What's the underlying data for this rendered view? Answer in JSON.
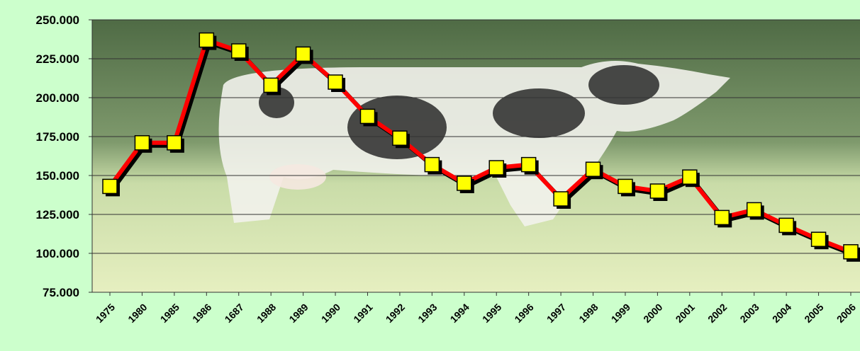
{
  "chart_data": {
    "type": "line",
    "categories": [
      "1975",
      "1980",
      "1985",
      "1986",
      "1687",
      "1988",
      "1989",
      "1990",
      "1991",
      "1992",
      "1993",
      "1994",
      "1995",
      "1996",
      "1997",
      "1998",
      "1999",
      "2000",
      "2001",
      "2002",
      "2003",
      "2004",
      "2005",
      "2006"
    ],
    "series": [
      {
        "color": "#ff0000",
        "marker_color": "#ffff00",
        "values": [
          143000,
          171000,
          171000,
          237000,
          230000,
          208000,
          228000,
          210000,
          188000,
          174000,
          157000,
          145000,
          155000,
          157000,
          135000,
          154000,
          143000,
          140000,
          149000,
          123000,
          128000,
          118000,
          109000,
          101000
        ]
      }
    ],
    "ylim": [
      75000,
      250000
    ],
    "yticks": [
      {
        "value": 75000,
        "label": "75.000"
      },
      {
        "value": 100000,
        "label": "100.000"
      },
      {
        "value": 125000,
        "label": "125.000"
      },
      {
        "value": 150000,
        "label": "150.000"
      },
      {
        "value": 175000,
        "label": "175.000"
      },
      {
        "value": 200000,
        "label": "200.000"
      },
      {
        "value": 225000,
        "label": "225.000"
      },
      {
        "value": 250000,
        "label": "250.000"
      }
    ],
    "grid": true
  }
}
